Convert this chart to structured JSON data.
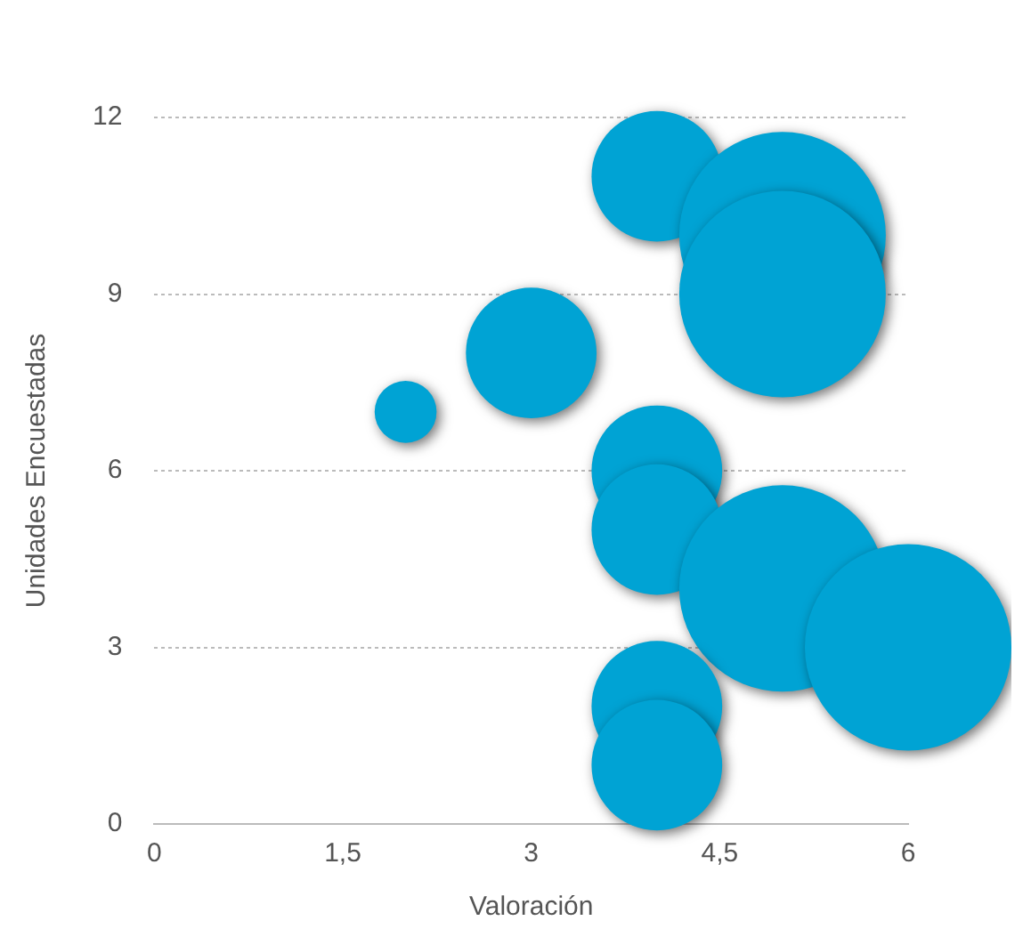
{
  "chart_data": {
    "type": "bubble",
    "xlabel": "Valoración",
    "ylabel": "Unidades Encuestadas",
    "x": [
      2,
      3,
      4,
      5,
      5,
      4,
      4,
      5,
      6,
      4,
      4
    ],
    "values": [
      7,
      8,
      11,
      10,
      9,
      6,
      5,
      4,
      3,
      2,
      1
    ],
    "sizes": [
      0.09,
      0.4,
      0.4,
      1,
      1,
      0.4,
      0.4,
      1,
      1,
      0.4,
      0.4
    ],
    "color": "#00a3d4",
    "xlim": [
      0,
      6
    ],
    "xticks": [
      0,
      {
        "value": 1.5,
        "label": "1,5"
      },
      3,
      {
        "value": 4.5,
        "label": "4,5"
      },
      6
    ],
    "ylim": [
      0,
      12
    ],
    "yticks": [
      0,
      3,
      6,
      9,
      12
    ],
    "grid": "y",
    "legend": false
  }
}
